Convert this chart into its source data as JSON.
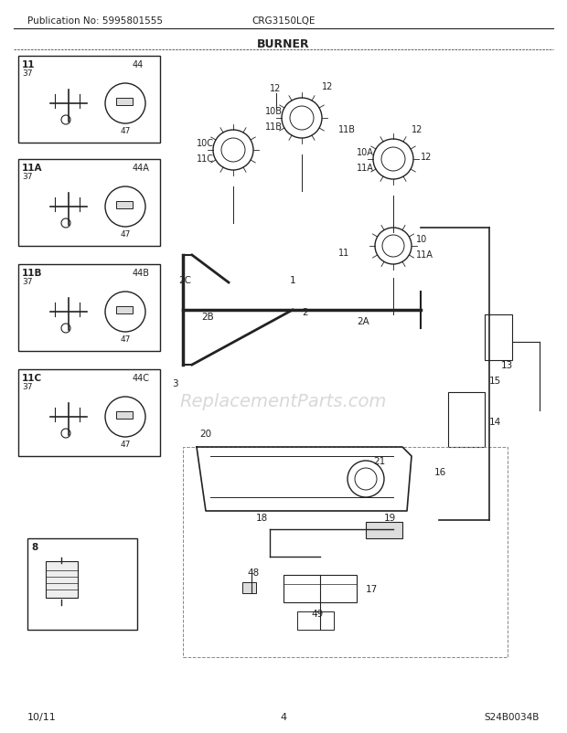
{
  "title": "BURNER",
  "pub_no": "Publication No: 5995801555",
  "model": "CRG3150LQE",
  "page": "4",
  "date": "10/11",
  "diagram_id": "S24B0034B",
  "bg_color": "#ffffff",
  "line_color": "#222222",
  "box_color": "#333333",
  "watermark": "ReplacementParts.com",
  "watermark_color": "#aaaaaa",
  "watermark_alpha": 0.45
}
